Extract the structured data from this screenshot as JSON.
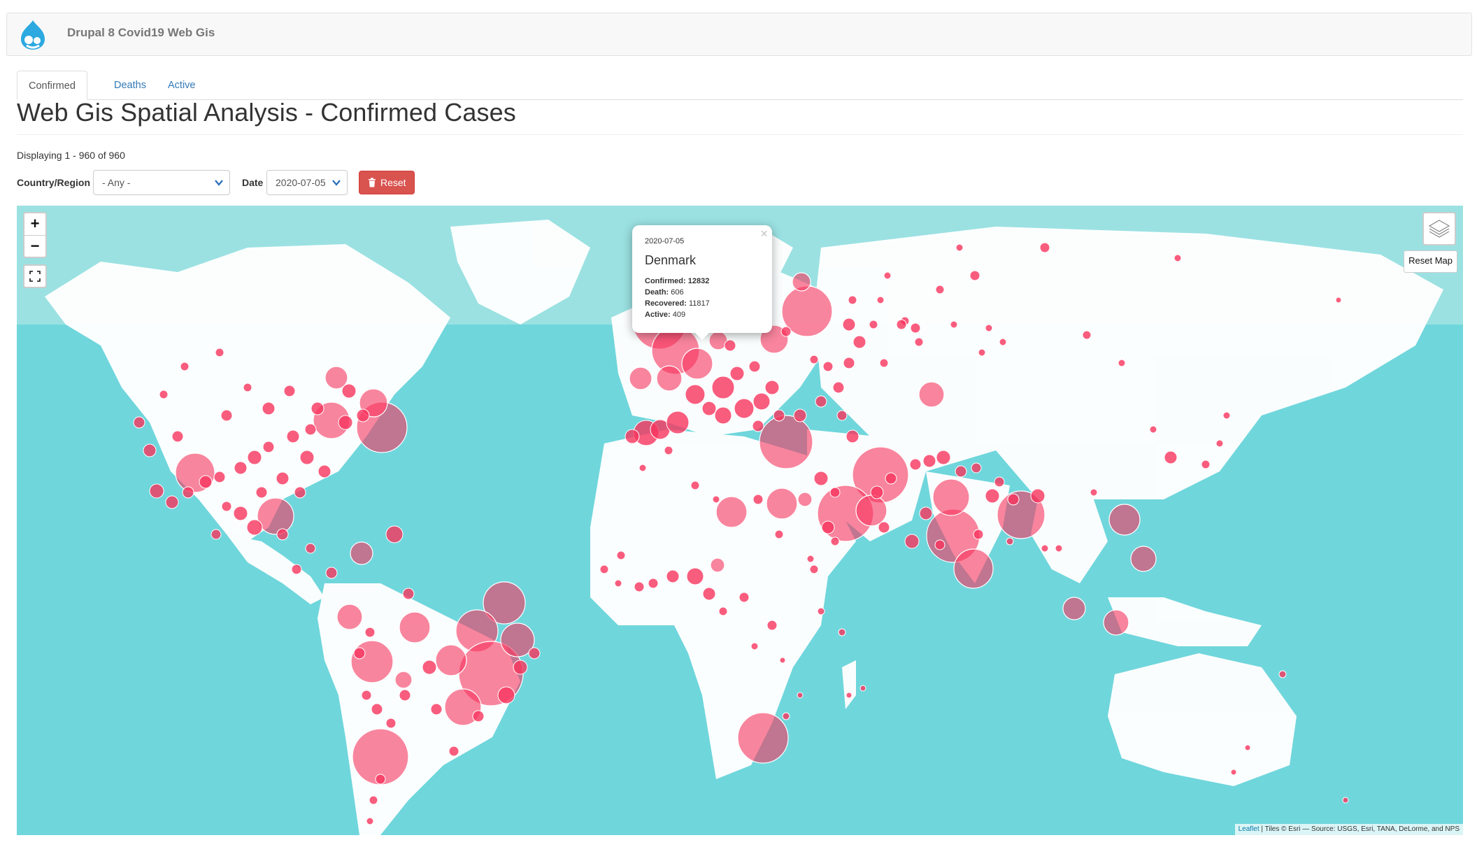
{
  "site": {
    "name": "Drupal 8 Covid19 Web Gis",
    "logo_icon": "drupal-drop-icon"
  },
  "tabs": [
    {
      "label": "Confirmed",
      "active": true
    },
    {
      "label": "Deaths",
      "active": false
    },
    {
      "label": "Active",
      "active": false
    }
  ],
  "page": {
    "title": "Web Gis Spatial Analysis - Confirmed Cases",
    "summary": "Displaying 1 - 960 of 960"
  },
  "filters": {
    "country_label": "Country/Region",
    "country_value": "- Any -",
    "date_label": "Date",
    "date_value": "2020-07-05",
    "reset_label": "Reset"
  },
  "map": {
    "zoom_in": "+",
    "zoom_out": "−",
    "fullscreen_icon": "fullscreen-icon",
    "layers_icon": "layers-icon",
    "reset_map_label": "Reset Map",
    "marker_color": "#f7345e",
    "ocean_color": "#6fd6dc",
    "land_color": "#ffffff",
    "attribution_link": "Leaflet",
    "attribution_text": " | Tiles © Esri — Source: USGS, Esri, TANA, DeLorme, and NPS"
  },
  "popup": {
    "date": "2020-07-05",
    "country": "Denmark",
    "confirmed_label": "Confirmed:",
    "confirmed_value": "12832",
    "death_label": "Death:",
    "death_value": "606",
    "recovered_label": "Recovered:",
    "recovered_value": "11817",
    "active_label": "Active:",
    "active_value": "409",
    "close": "×"
  }
}
